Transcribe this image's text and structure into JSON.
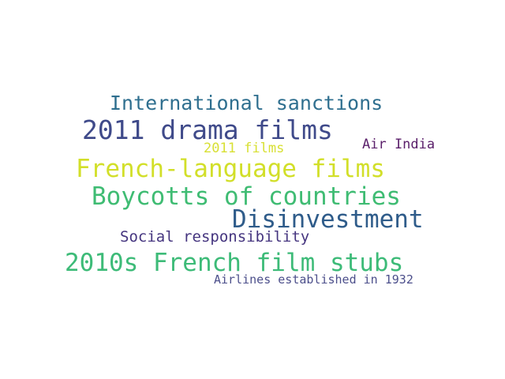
{
  "words": [
    {
      "text": "International sanctions",
      "color": "#2f6f8f"
    },
    {
      "text": "2011 drama films",
      "color": "#3f4a8a"
    },
    {
      "text": "2011 films",
      "color": "#d8e034"
    },
    {
      "text": "Air India",
      "color": "#5a1f6a"
    },
    {
      "text": "French-language films",
      "color": "#d2df29"
    },
    {
      "text": "Boycotts of countries",
      "color": "#3fbc73"
    },
    {
      "text": "Disinvestment",
      "color": "#2f5c8a"
    },
    {
      "text": "Social responsibility",
      "color": "#45357f"
    },
    {
      "text": "2010s French film stubs",
      "color": "#3dbb78"
    },
    {
      "text": "Airlines established in 1932",
      "color": "#4c4f8b"
    }
  ]
}
